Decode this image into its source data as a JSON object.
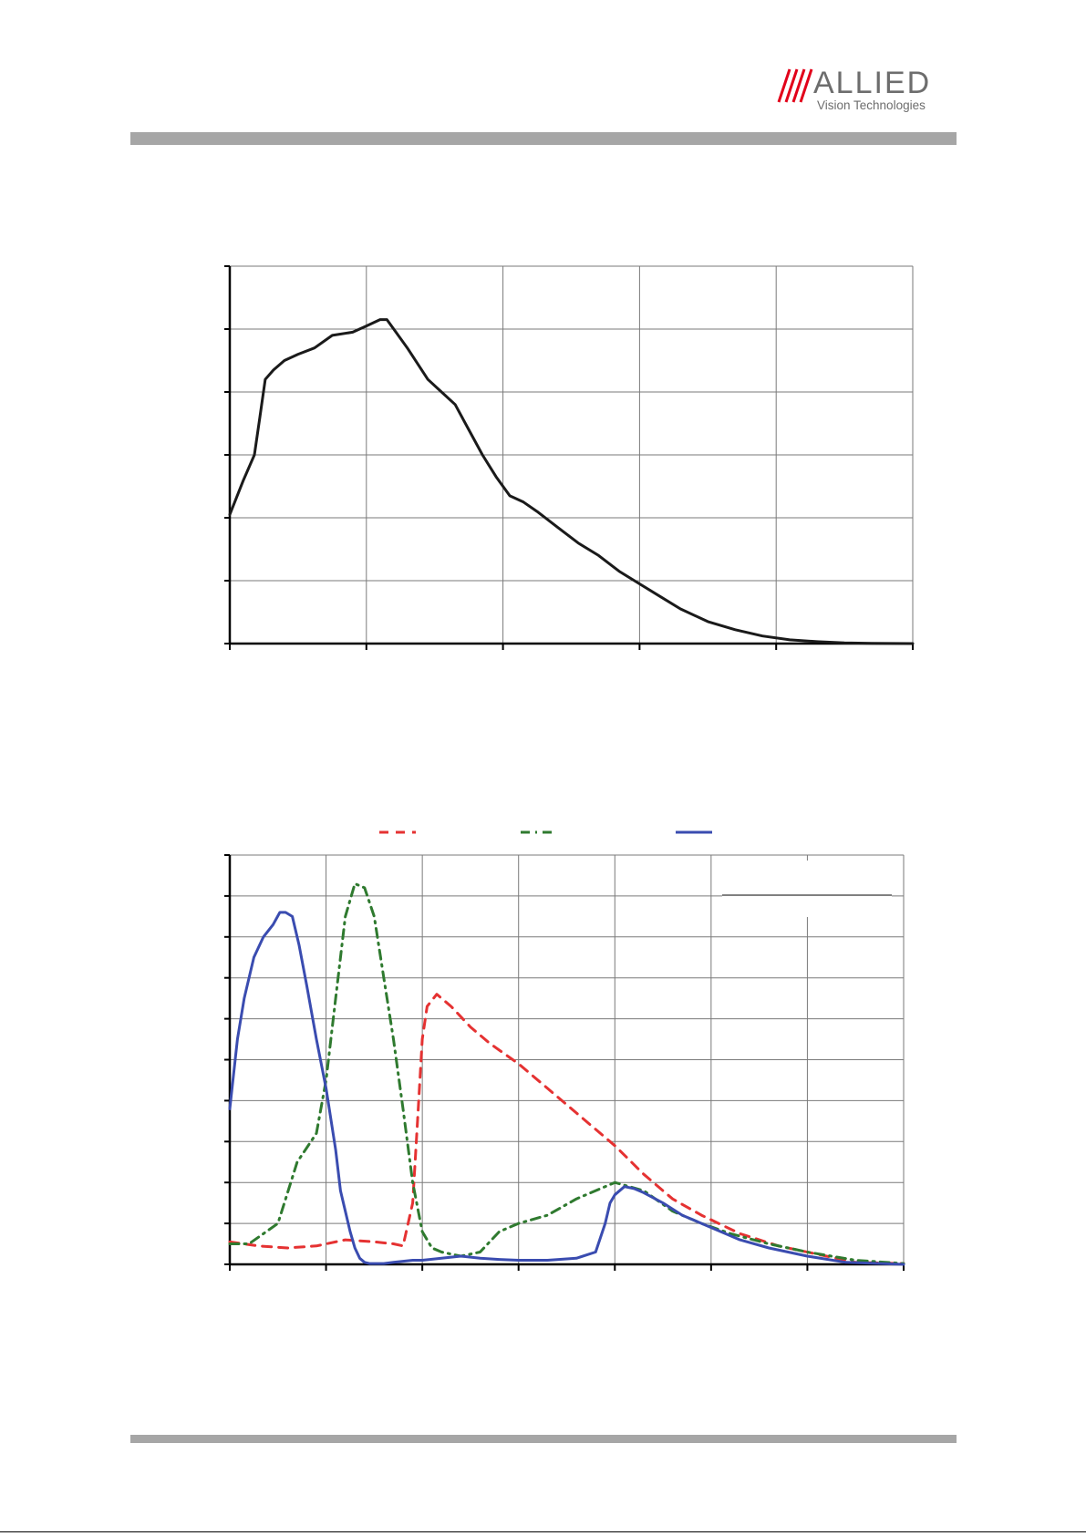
{
  "header": {
    "brand_name": "ALLIED",
    "brand_tagline": "Vision Technologies",
    "brand_color": "#e2001a",
    "brand_text_color": "#6d6d6d"
  },
  "colors": {
    "rule": "#a6a6a6"
  },
  "chart_data": [
    {
      "type": "line",
      "xlim": [
        0,
        5
      ],
      "ylim": [
        0,
        6
      ],
      "x_tick_count": 6,
      "y_tick_count": 7,
      "grid": true,
      "series": [
        {
          "color": "#1a1a1a",
          "style": "solid",
          "x": [
            0,
            0.1,
            0.18,
            0.22,
            0.26,
            0.32,
            0.4,
            0.5,
            0.62,
            0.75,
            0.9,
            1.0,
            1.1,
            1.15,
            1.2,
            1.3,
            1.45,
            1.55,
            1.65,
            1.75,
            1.85,
            1.95,
            2.05,
            2.15,
            2.25,
            2.4,
            2.55,
            2.7,
            2.85,
            3.0,
            3.15,
            3.3,
            3.5,
            3.7,
            3.9,
            4.1,
            4.3,
            4.5,
            4.7,
            5.0
          ],
          "y": [
            2.05,
            2.6,
            3.0,
            3.6,
            4.2,
            4.35,
            4.5,
            4.6,
            4.7,
            4.9,
            4.95,
            5.05,
            5.15,
            5.15,
            5.0,
            4.7,
            4.2,
            4.0,
            3.8,
            3.4,
            3.0,
            2.65,
            2.35,
            2.25,
            2.1,
            1.85,
            1.6,
            1.4,
            1.15,
            0.95,
            0.75,
            0.55,
            0.35,
            0.22,
            0.12,
            0.06,
            0.03,
            0.01,
            0.005,
            0.0
          ]
        }
      ]
    },
    {
      "type": "line",
      "xlim": [
        0,
        7
      ],
      "ylim": [
        0,
        10
      ],
      "x_tick_count": 8,
      "y_tick_count": 11,
      "grid": true,
      "legend_position": "top",
      "series": [
        {
          "color": "#e53232",
          "style": "dashed",
          "x": [
            0,
            0.3,
            0.6,
            0.9,
            1.2,
            1.5,
            1.7,
            1.8,
            1.9,
            1.95,
            2.0,
            2.05,
            2.15,
            2.3,
            2.5,
            2.7,
            3.0,
            3.3,
            3.6,
            4.0,
            4.3,
            4.6,
            4.9,
            5.3,
            5.7,
            6.1,
            6.5,
            7.0
          ],
          "y": [
            0.55,
            0.45,
            0.4,
            0.45,
            0.6,
            0.55,
            0.5,
            0.45,
            1.5,
            3.5,
            5.5,
            6.3,
            6.6,
            6.3,
            5.8,
            5.4,
            4.9,
            4.3,
            3.7,
            2.9,
            2.2,
            1.6,
            1.2,
            0.75,
            0.45,
            0.25,
            0.05,
            0.02
          ]
        },
        {
          "color": "#2f7a2f",
          "style": "dashdot",
          "x": [
            0,
            0.2,
            0.5,
            0.7,
            0.9,
            1.0,
            1.1,
            1.2,
            1.3,
            1.4,
            1.5,
            1.6,
            1.7,
            1.8,
            1.9,
            2.0,
            2.1,
            2.2,
            2.4,
            2.6,
            2.8,
            3.0,
            3.3,
            3.6,
            4.0,
            4.3,
            4.6,
            4.9,
            5.2,
            5.6,
            6.0,
            6.5,
            7.0
          ],
          "y": [
            0.5,
            0.5,
            1.0,
            2.5,
            3.2,
            4.5,
            6.5,
            8.5,
            9.3,
            9.2,
            8.5,
            7.0,
            5.5,
            3.8,
            2.0,
            0.8,
            0.4,
            0.3,
            0.2,
            0.3,
            0.8,
            1.0,
            1.2,
            1.6,
            2.0,
            1.8,
            1.3,
            1.0,
            0.75,
            0.5,
            0.3,
            0.1,
            0.02
          ]
        },
        {
          "color": "#3a4cb0",
          "style": "solid",
          "x": [
            0,
            0.08,
            0.15,
            0.25,
            0.35,
            0.45,
            0.52,
            0.58,
            0.65,
            0.72,
            0.8,
            0.9,
            1.0,
            1.1,
            1.15,
            1.2,
            1.25,
            1.3,
            1.35,
            1.4,
            1.45,
            1.5,
            1.6,
            1.7,
            1.9,
            2.0,
            2.2,
            2.4,
            2.6,
            2.8,
            3.0,
            3.3,
            3.6,
            3.8,
            3.9,
            3.95,
            4.0,
            4.1,
            4.2,
            4.3,
            4.5,
            4.7,
            5.0,
            5.3,
            5.6,
            6.0,
            6.4,
            7.0
          ],
          "y": [
            3.8,
            5.5,
            6.5,
            7.5,
            8.0,
            8.3,
            8.6,
            8.6,
            8.5,
            7.8,
            6.8,
            5.5,
            4.3,
            2.8,
            1.8,
            1.3,
            0.8,
            0.4,
            0.15,
            0.05,
            0.02,
            0.02,
            0.02,
            0.05,
            0.1,
            0.1,
            0.15,
            0.2,
            0.15,
            0.12,
            0.1,
            0.1,
            0.15,
            0.3,
            1.0,
            1.5,
            1.7,
            1.9,
            1.85,
            1.75,
            1.5,
            1.2,
            0.9,
            0.6,
            0.4,
            0.2,
            0.05,
            0.0
          ]
        }
      ]
    }
  ]
}
